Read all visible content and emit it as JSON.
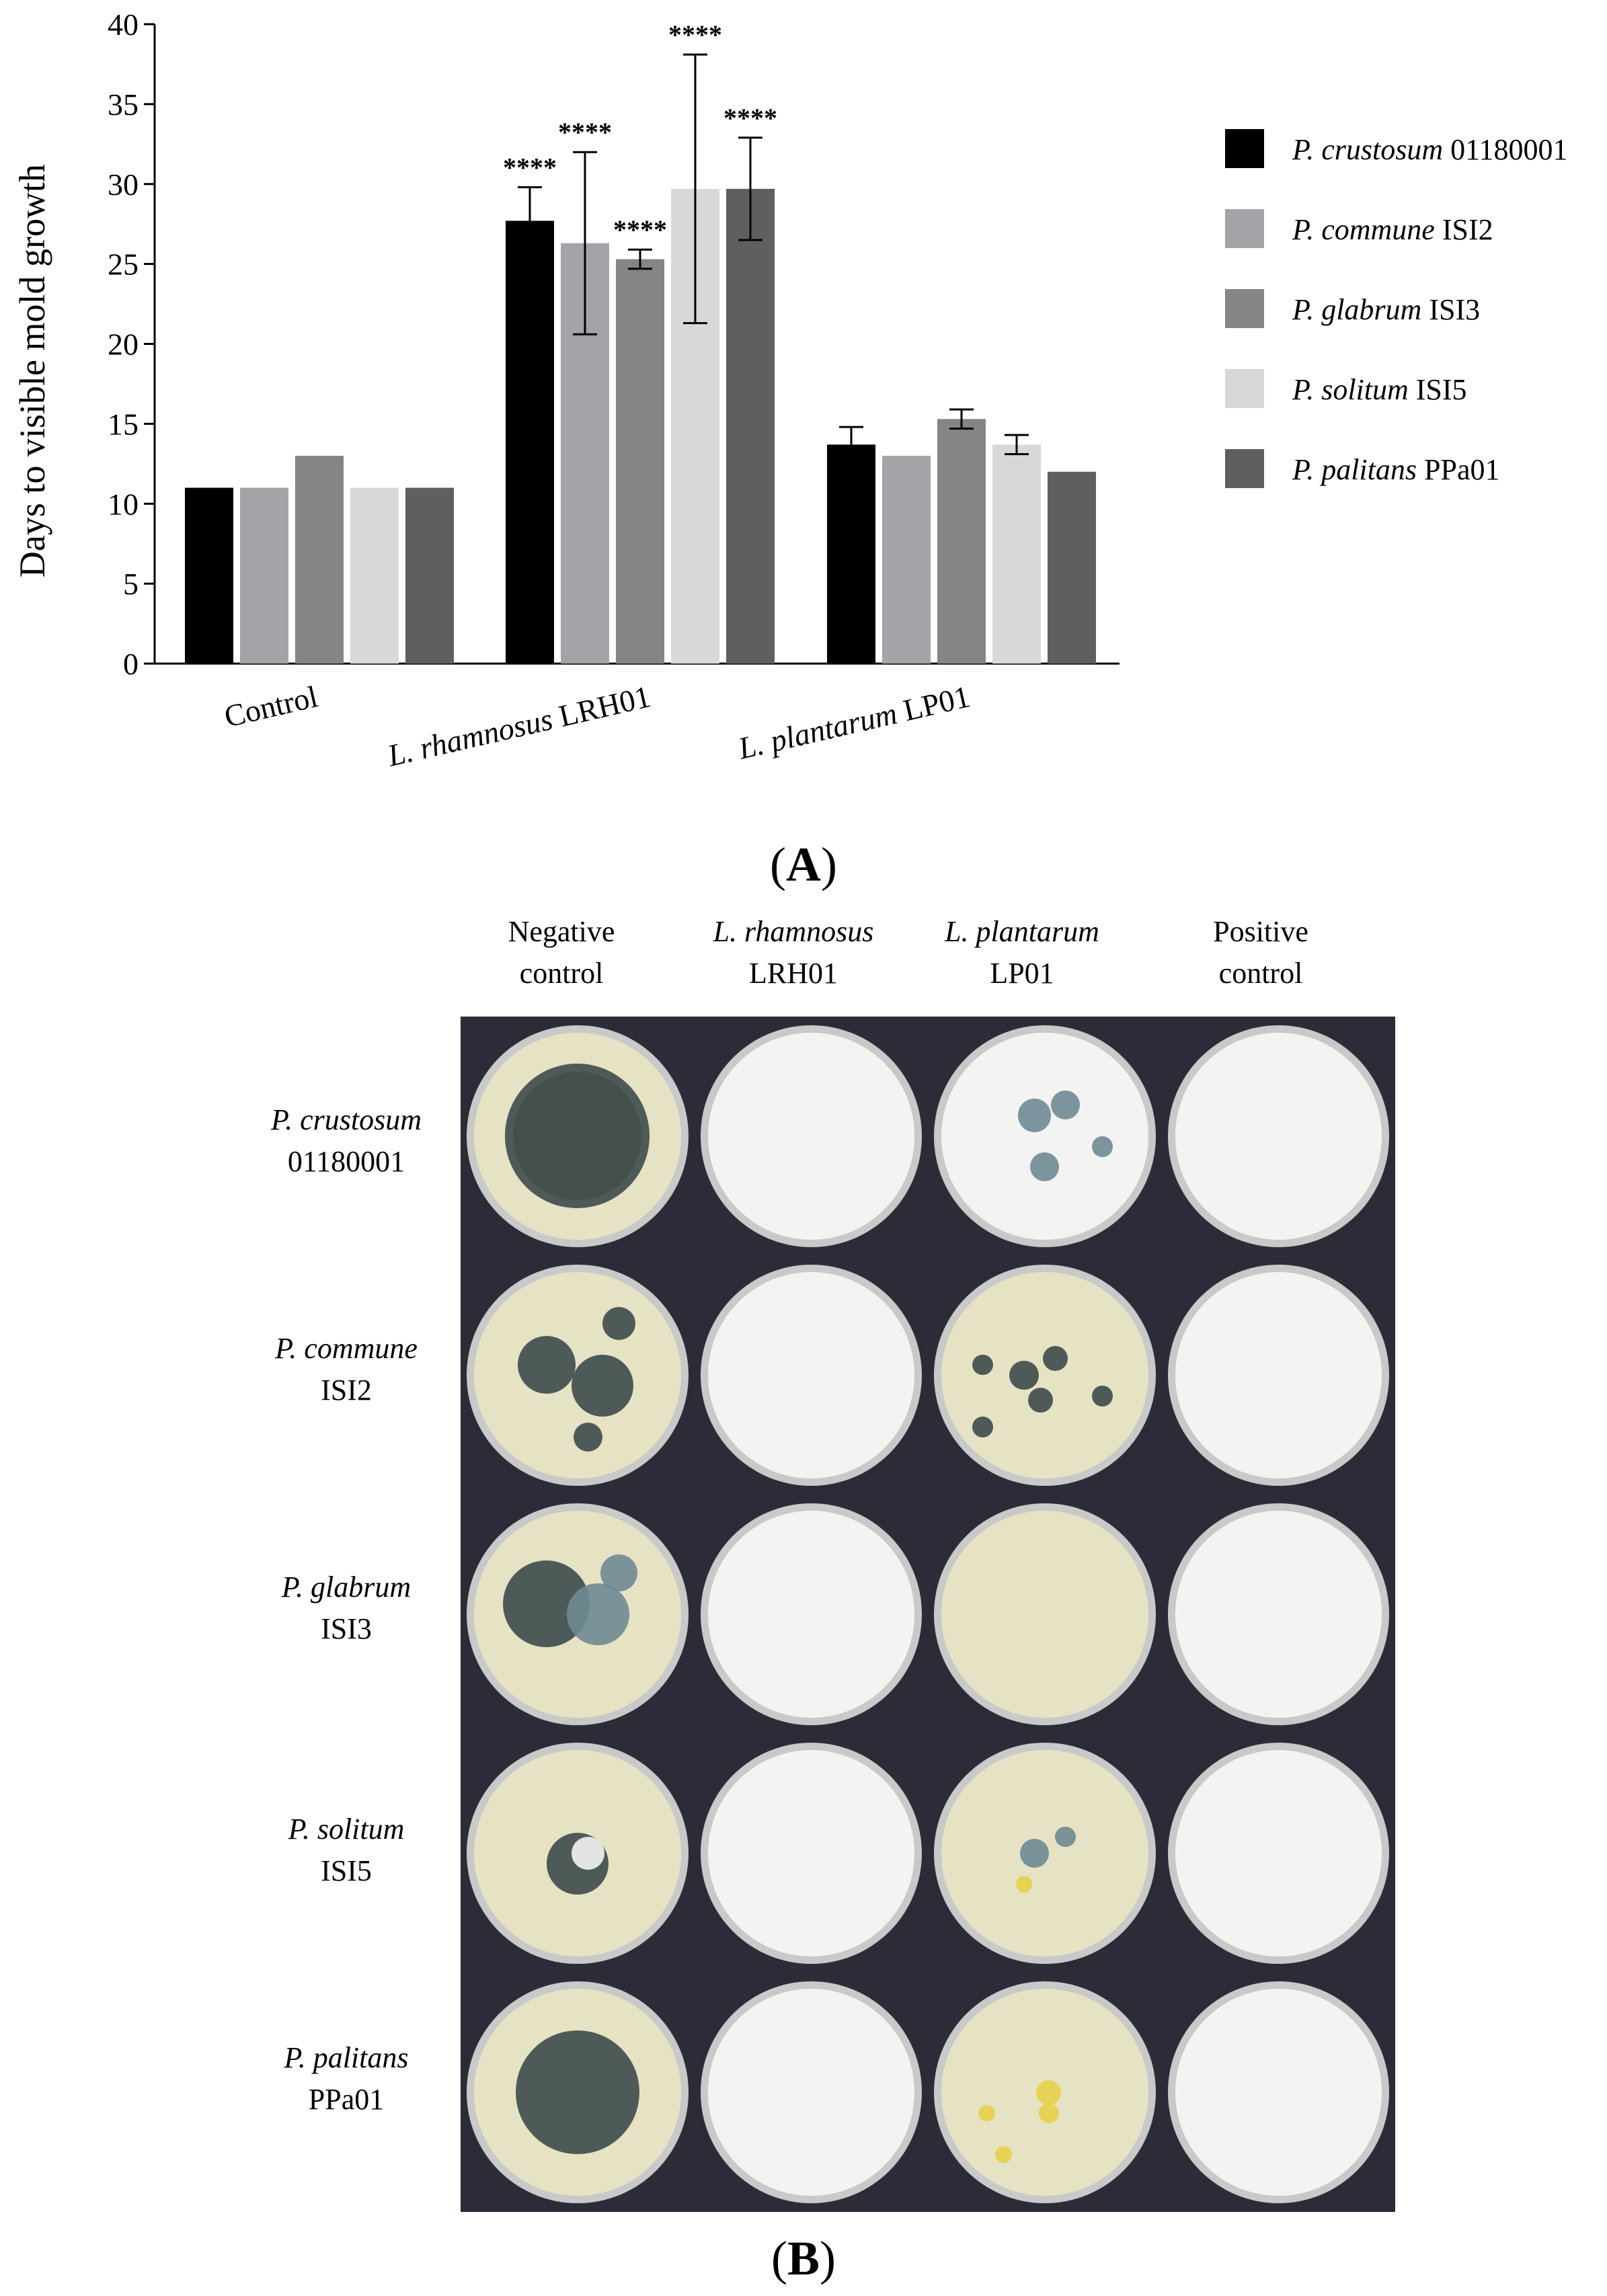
{
  "chart_data": {
    "type": "bar",
    "ylabel": "Days to visible mold growth",
    "ylim": [
      0,
      40
    ],
    "yticks": [
      0,
      5,
      10,
      15,
      20,
      25,
      30,
      35,
      40
    ],
    "categories": [
      {
        "italic": "L. rhamnosus",
        "rest": " LRH01",
        "full": "L. rhamnosus LRH01"
      },
      {
        "italic": "",
        "rest": "Control",
        "full": "Control"
      },
      {
        "italic": "L. plantarum",
        "rest": " LP01",
        "full": "L. plantarum LP01"
      }
    ],
    "category_order": [
      1,
      0,
      2
    ],
    "series": [
      {
        "name_italic": "P. crustosum",
        "name_rest": " 01180001",
        "color": "#000000",
        "values": [
          11,
          27.7,
          13.7
        ],
        "err": [
          0,
          2.1,
          1.1
        ],
        "sig": [
          "",
          "****",
          ""
        ]
      },
      {
        "name_italic": "P. commune",
        "name_rest": " ISI2",
        "color": "#a4a4a8",
        "values": [
          11,
          26.3,
          13
        ],
        "err": [
          0,
          5.7,
          0
        ],
        "sig": [
          "",
          "****",
          ""
        ]
      },
      {
        "name_italic": "P. glabrum",
        "name_rest": " ISI3",
        "color": "#858585",
        "values": [
          13,
          25.3,
          15.3
        ],
        "err": [
          0,
          0.6,
          0.6
        ],
        "sig": [
          "",
          "****",
          ""
        ]
      },
      {
        "name_italic": "P. solitum",
        "name_rest": " ISI5",
        "color": "#d8d8d8",
        "values": [
          11,
          29.7,
          13.7
        ],
        "err": [
          0,
          8.4,
          0.6
        ],
        "sig": [
          "",
          "****",
          ""
        ]
      },
      {
        "name_italic": "P. palitans",
        "name_rest": " PPa01",
        "color": "#5f5f5f",
        "values": [
          11,
          29.7,
          12
        ],
        "err": [
          0,
          3.2,
          0
        ],
        "sig": [
          "",
          "****",
          ""
        ]
      }
    ],
    "legend_position": "right",
    "grid": false
  },
  "panel_a_label": "A",
  "panel_b_label": "B",
  "plate_columns": [
    {
      "line1": "Negative",
      "line2": "control",
      "italic": false
    },
    {
      "line1": "L. rhamnosus",
      "line2": "LRH01",
      "italic": true
    },
    {
      "line1": "L. plantarum",
      "line2": "LP01",
      "italic": true
    },
    {
      "line1": "Positive",
      "line2": "control",
      "italic": false
    }
  ],
  "plate_rows": [
    {
      "line1": "P. crustosum",
      "line2": "01180001"
    },
    {
      "line1": "P. commune",
      "line2": "ISI2"
    },
    {
      "line1": "P. glabrum",
      "line2": "ISI3"
    },
    {
      "line1": "P. solitum",
      "line2": "ISI5"
    },
    {
      "line1": "P. palitans",
      "line2": "PPa01"
    }
  ],
  "plate_colors": {
    "background": "#2b2c37",
    "milk": "#f3f3f1",
    "agar_yellow": "#e6e3c4",
    "mold_dark": "#3d4a4c",
    "mold_blue": "#6f8a93",
    "mold_yellow": "#e8cf4a",
    "mold_brown": "#8a6a3a"
  }
}
